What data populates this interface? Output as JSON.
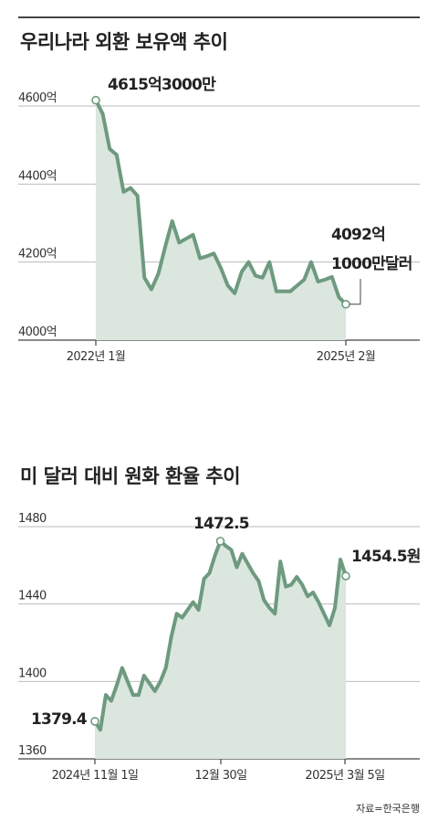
{
  "chart_data": [
    {
      "type": "area",
      "title": "우리나라 외환 보유액 추이",
      "ylim": [
        4000,
        4600
      ],
      "yticks": [
        "4600억",
        "4400억",
        "4200억",
        "4000억"
      ],
      "ytick_values": [
        4600,
        4400,
        4200,
        4000
      ],
      "xticks": [
        "2022년 1월",
        "2025년 2월"
      ],
      "x_start": "2022년 1월",
      "x_end": "2025년 2월",
      "grid": true,
      "values": [
        4615,
        4580,
        4490,
        4475,
        4380,
        4390,
        4370,
        4160,
        4130,
        4170,
        4240,
        4305,
        4250,
        4260,
        4270,
        4210,
        4215,
        4222,
        4185,
        4140,
        4120,
        4175,
        4200,
        4165,
        4160,
        4200,
        4125,
        4125,
        4125,
        4140,
        4155,
        4200,
        4150,
        4155,
        4162,
        4110,
        4092
      ],
      "annotations": {
        "start_label": "4615억3000만",
        "end_label_line1": "4092억",
        "end_label_line2": "1000만달러"
      },
      "colors": {
        "line": "#6e9a7f",
        "fill": "#dae6de",
        "marker_stroke": "#6e9a7f"
      }
    },
    {
      "type": "area",
      "title": "미 달러 대비 원화 환율 추이",
      "ylim": [
        1360,
        1480
      ],
      "yticks": [
        "1480",
        "1440",
        "1400",
        "1360"
      ],
      "ytick_values": [
        1480,
        1440,
        1400,
        1360
      ],
      "xticks": [
        "2024년 11월 1일",
        "12월 30일",
        "2025년 3월 5일"
      ],
      "x_start": "2024년 11월 1일",
      "x_mid": "12월 30일",
      "x_end": "2025년 3월 5일",
      "grid": true,
      "values": [
        1379.4,
        1375,
        1393,
        1390,
        1398,
        1407,
        1400,
        1393,
        1393,
        1403,
        1399,
        1395,
        1400,
        1407,
        1423,
        1435,
        1433,
        1437,
        1441,
        1437,
        1453,
        1456,
        1465,
        1472.5,
        1470,
        1468,
        1459,
        1466,
        1461,
        1456,
        1452,
        1442,
        1438,
        1435,
        1462,
        1449,
        1450,
        1454,
        1450,
        1444,
        1446,
        1441,
        1435,
        1429,
        1438,
        1463,
        1454.5
      ],
      "annotations": {
        "start_label": "1379.4",
        "peak_label": "1472.5",
        "end_label": "1454.5원"
      },
      "colors": {
        "line": "#6e9a7f",
        "fill": "#dae6de",
        "marker_stroke": "#6e9a7f"
      }
    }
  ],
  "source": "자료=한국은행"
}
